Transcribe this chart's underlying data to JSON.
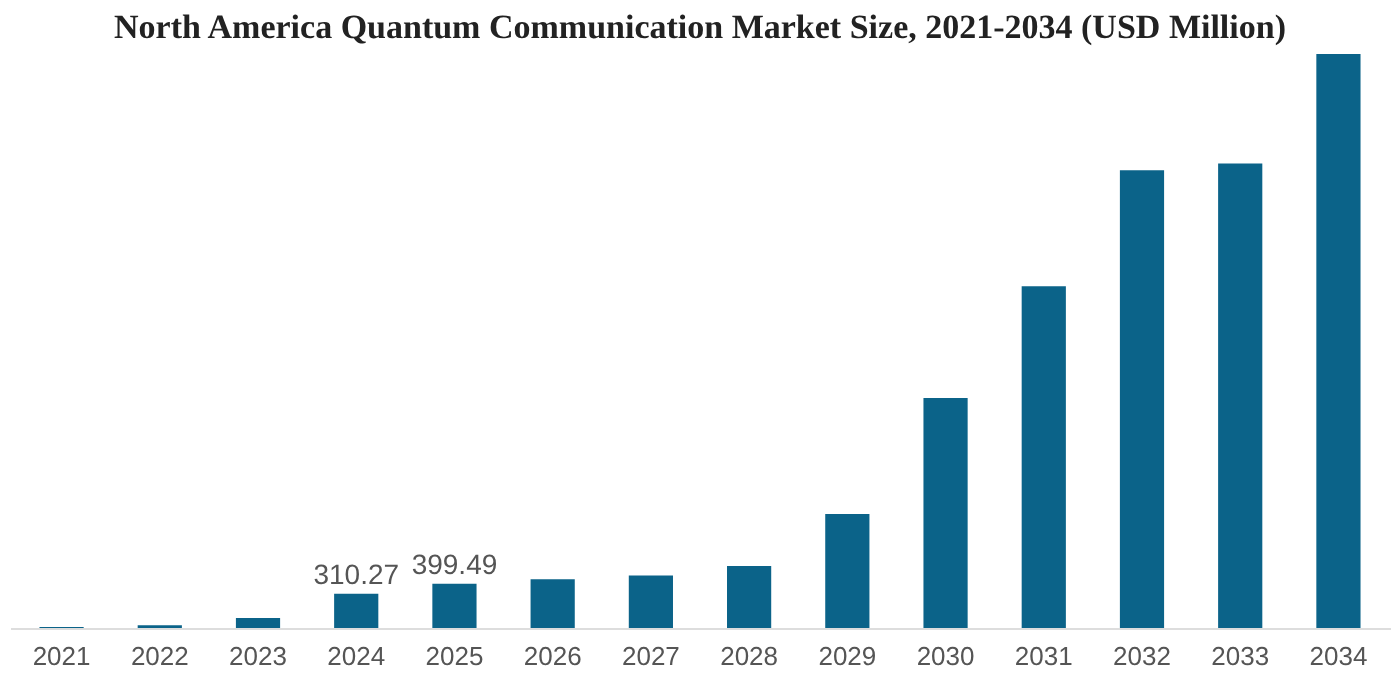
{
  "chart_data": {
    "type": "bar",
    "title": "North America Quantum Communication Market Size, 2021-2034 (USD Million)",
    "categories": [
      "2021",
      "2022",
      "2023",
      "2024",
      "2025",
      "2026",
      "2027",
      "2028",
      "2029",
      "2030",
      "2031",
      "2032",
      "2033",
      "2034"
    ],
    "values": [
      10,
      25,
      90,
      310.27,
      399.49,
      440,
      475,
      560,
      1030,
      2080,
      3090,
      4140,
      4200,
      5190
    ],
    "value_labels": [
      null,
      null,
      null,
      "310.27",
      "399.49",
      null,
      null,
      null,
      null,
      null,
      null,
      null,
      null,
      null
    ],
    "color": "#0b6389"
  }
}
